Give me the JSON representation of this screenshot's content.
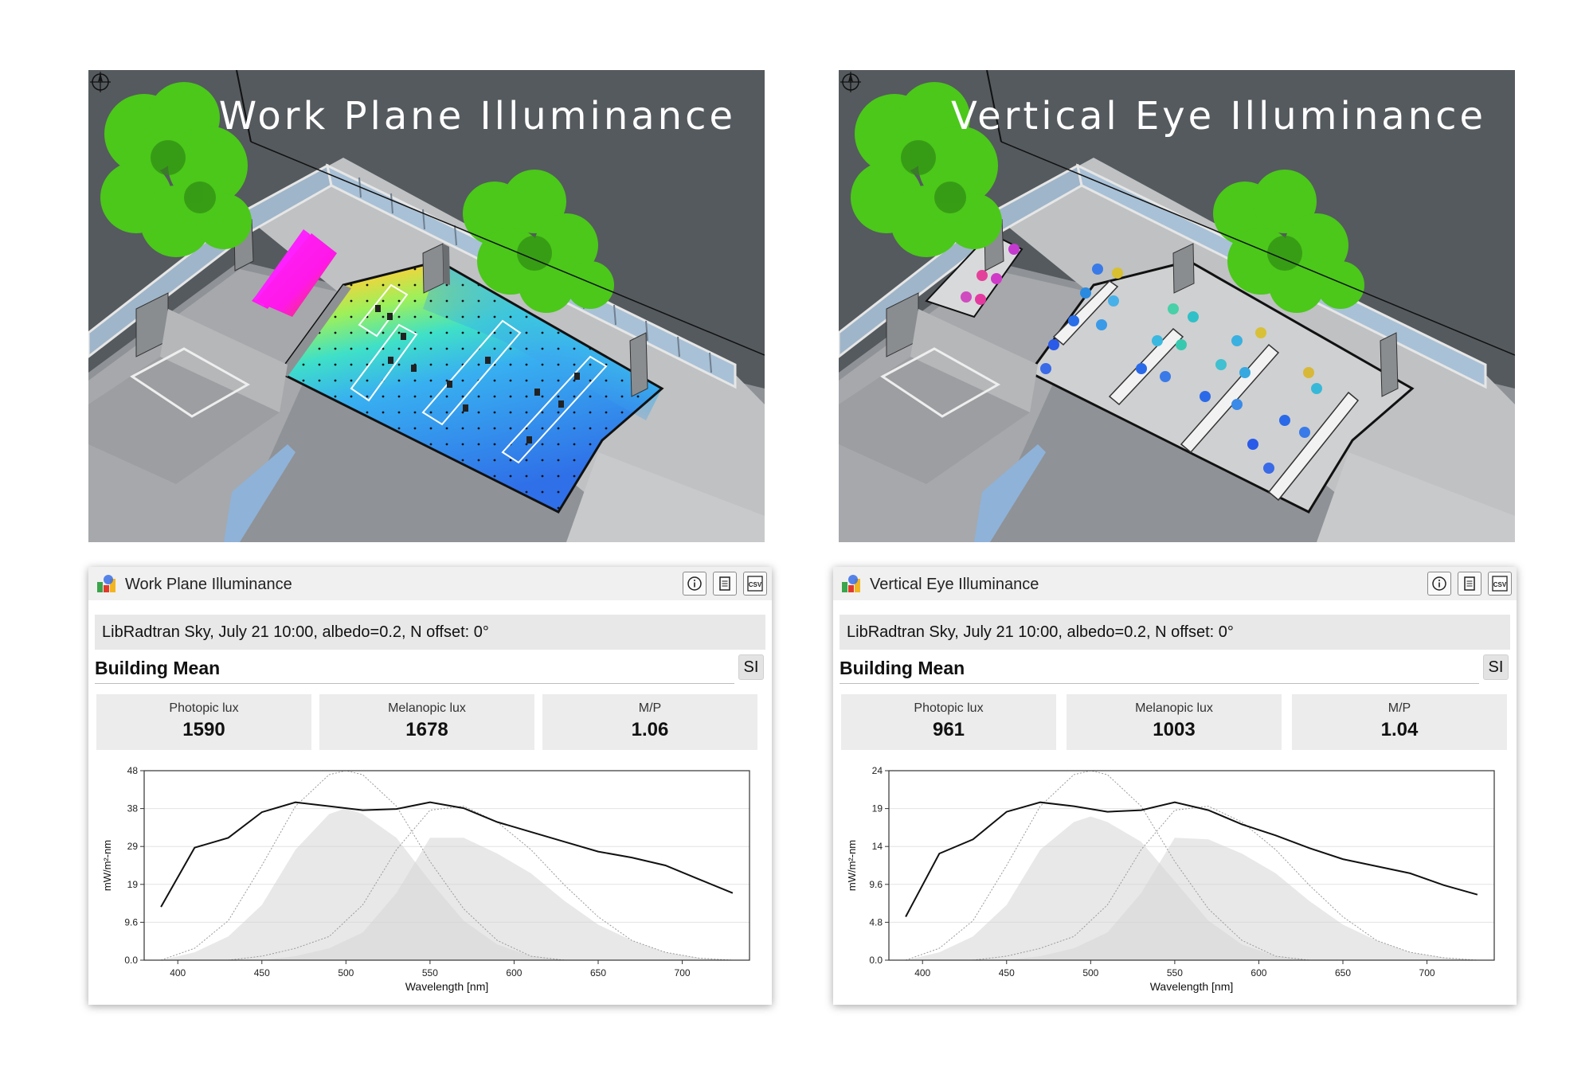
{
  "renders": [
    {
      "title": "Work Plane Illuminance",
      "mode": "false-color heat map",
      "compass": "compass-icon"
    },
    {
      "title": "Vertical Eye Illuminance",
      "mode": "eye sensor rosettes",
      "compass": "compass-icon"
    }
  ],
  "panels": [
    {
      "title": "Work Plane Illuminance",
      "buttons": {
        "info": "info-icon",
        "report": "report-icon",
        "csv": "CSV"
      },
      "sky": "LibRadtran Sky, July 21 10:00, albedo=0.2, N offset: 0°",
      "section": "Building Mean",
      "units": "SI",
      "stats": [
        {
          "label": "Photopic lux",
          "value": "1590"
        },
        {
          "label": "Melanopic lux",
          "value": "1678"
        },
        {
          "label": "M/P",
          "value": "1.06"
        }
      ]
    },
    {
      "title": "Vertical Eye Illuminance",
      "buttons": {
        "info": "info-icon",
        "report": "report-icon",
        "csv": "CSV"
      },
      "sky": "LibRadtran Sky, July 21 10:00, albedo=0.2, N offset: 0°",
      "section": "Building Mean",
      "units": "SI",
      "stats": [
        {
          "label": "Photopic lux",
          "value": "961"
        },
        {
          "label": "Melanopic lux",
          "value": "1003"
        },
        {
          "label": "M/P",
          "value": "1.04"
        }
      ]
    }
  ],
  "chart_data": [
    {
      "type": "line",
      "xlabel": "Wavelength [nm]",
      "ylabel": "mW/m²-nm",
      "xlim": [
        380,
        740
      ],
      "ylim": [
        0,
        48
      ],
      "xticks": [
        400,
        450,
        500,
        550,
        600,
        650,
        700
      ],
      "yticks": [
        "0.0",
        "9.6",
        "19",
        "29",
        "38",
        "48"
      ],
      "grid": "horizontal",
      "series": [
        {
          "values": [
            [
              390,
              13.5
            ],
            [
              410,
              28.5
            ],
            [
              430,
              31
            ],
            [
              450,
              37.5
            ],
            [
              470,
              40
            ],
            [
              490,
              39
            ],
            [
              510,
              38
            ],
            [
              530,
              38.3
            ],
            [
              550,
              40
            ],
            [
              570,
              38.5
            ],
            [
              590,
              35
            ],
            [
              610,
              32.5
            ],
            [
              630,
              30
            ],
            [
              650,
              27.5
            ],
            [
              670,
              26
            ],
            [
              690,
              24
            ],
            [
              710,
              20.5
            ],
            [
              730,
              17
            ]
          ]
        }
      ],
      "shaded_curves": [
        {
          "values": [
            [
              390,
              0
            ],
            [
              410,
              2
            ],
            [
              430,
              6
            ],
            [
              450,
              14
            ],
            [
              470,
              28
            ],
            [
              490,
              37
            ],
            [
              500,
              38.5
            ],
            [
              510,
              37
            ],
            [
              530,
              31
            ],
            [
              550,
              20
            ],
            [
              570,
              10
            ],
            [
              590,
              4
            ],
            [
              610,
              1
            ],
            [
              630,
              0
            ]
          ]
        },
        {
          "values": [
            [
              450,
              0
            ],
            [
              470,
              1
            ],
            [
              490,
              3
            ],
            [
              510,
              7
            ],
            [
              530,
              17
            ],
            [
              550,
              31
            ],
            [
              570,
              31
            ],
            [
              590,
              27
            ],
            [
              610,
              22
            ],
            [
              630,
              15
            ],
            [
              650,
              9
            ],
            [
              670,
              5
            ],
            [
              690,
              2
            ],
            [
              710,
              0.5
            ],
            [
              730,
              0
            ]
          ]
        }
      ],
      "dotted_curves": [
        {
          "values": [
            [
              390,
              0
            ],
            [
              410,
              3
            ],
            [
              430,
              10
            ],
            [
              450,
              24
            ],
            [
              470,
              39
            ],
            [
              490,
              47
            ],
            [
              500,
              48
            ],
            [
              510,
              47
            ],
            [
              530,
              39
            ],
            [
              550,
              25
            ],
            [
              570,
              13
            ],
            [
              590,
              5
            ],
            [
              610,
              1
            ],
            [
              630,
              0
            ]
          ]
        },
        {
          "values": [
            [
              430,
              0
            ],
            [
              450,
              1
            ],
            [
              470,
              3
            ],
            [
              490,
              6
            ],
            [
              510,
              14
            ],
            [
              530,
              28
            ],
            [
              550,
              38
            ],
            [
              570,
              39
            ],
            [
              590,
              35
            ],
            [
              610,
              28
            ],
            [
              630,
              19
            ],
            [
              650,
              11
            ],
            [
              670,
              5
            ],
            [
              690,
              2
            ],
            [
              710,
              0.5
            ],
            [
              730,
              0
            ]
          ]
        }
      ]
    },
    {
      "type": "line",
      "xlabel": "Wavelength [nm]",
      "ylabel": "mW/m²-nm",
      "xlim": [
        380,
        740
      ],
      "ylim": [
        0,
        24
      ],
      "xticks": [
        400,
        450,
        500,
        550,
        600,
        650,
        700
      ],
      "yticks": [
        "0.0",
        "4.8",
        "9.6",
        "14",
        "19",
        "24"
      ],
      "grid": "horizontal",
      "series": [
        {
          "values": [
            [
              390,
              5.5
            ],
            [
              410,
              13.5
            ],
            [
              430,
              15.3
            ],
            [
              450,
              18.8
            ],
            [
              470,
              20
            ],
            [
              490,
              19.5
            ],
            [
              510,
              18.8
            ],
            [
              530,
              19
            ],
            [
              550,
              20
            ],
            [
              570,
              19
            ],
            [
              590,
              17.2
            ],
            [
              610,
              15.8
            ],
            [
              630,
              14.2
            ],
            [
              650,
              12.8
            ],
            [
              670,
              11.9
            ],
            [
              690,
              11
            ],
            [
              710,
              9.5
            ],
            [
              730,
              8.3
            ]
          ]
        }
      ],
      "shaded_curves": [
        {
          "values": [
            [
              390,
              0
            ],
            [
              410,
              1
            ],
            [
              430,
              3
            ],
            [
              450,
              7
            ],
            [
              470,
              14
            ],
            [
              490,
              17.5
            ],
            [
              500,
              18.2
            ],
            [
              510,
              17.5
            ],
            [
              530,
              15
            ],
            [
              550,
              10
            ],
            [
              570,
              5
            ],
            [
              590,
              2
            ],
            [
              610,
              0.5
            ],
            [
              630,
              0
            ]
          ]
        },
        {
          "values": [
            [
              450,
              0
            ],
            [
              470,
              0.5
            ],
            [
              490,
              1.5
            ],
            [
              510,
              3.5
            ],
            [
              530,
              8.5
            ],
            [
              550,
              15.5
            ],
            [
              570,
              15.3
            ],
            [
              590,
              13.5
            ],
            [
              610,
              11
            ],
            [
              630,
              7.5
            ],
            [
              650,
              4.5
            ],
            [
              670,
              2.5
            ],
            [
              690,
              1
            ],
            [
              710,
              0.3
            ],
            [
              730,
              0
            ]
          ]
        }
      ],
      "dotted_curves": [
        {
          "values": [
            [
              390,
              0
            ],
            [
              410,
              1.5
            ],
            [
              430,
              5
            ],
            [
              450,
              12
            ],
            [
              470,
              19.5
            ],
            [
              490,
              23.5
            ],
            [
              500,
              24
            ],
            [
              510,
              23.5
            ],
            [
              530,
              19.5
            ],
            [
              550,
              12.5
            ],
            [
              570,
              6.5
            ],
            [
              590,
              2.5
            ],
            [
              610,
              0.5
            ],
            [
              630,
              0
            ]
          ]
        },
        {
          "values": [
            [
              430,
              0
            ],
            [
              450,
              0.5
            ],
            [
              470,
              1.5
            ],
            [
              490,
              3
            ],
            [
              510,
              7
            ],
            [
              530,
              14
            ],
            [
              550,
              19
            ],
            [
              570,
              19.5
            ],
            [
              590,
              17.5
            ],
            [
              610,
              14
            ],
            [
              630,
              9.5
            ],
            [
              650,
              5.5
            ],
            [
              670,
              2.5
            ],
            [
              690,
              1
            ],
            [
              710,
              0.3
            ],
            [
              730,
              0
            ]
          ]
        }
      ]
    }
  ]
}
